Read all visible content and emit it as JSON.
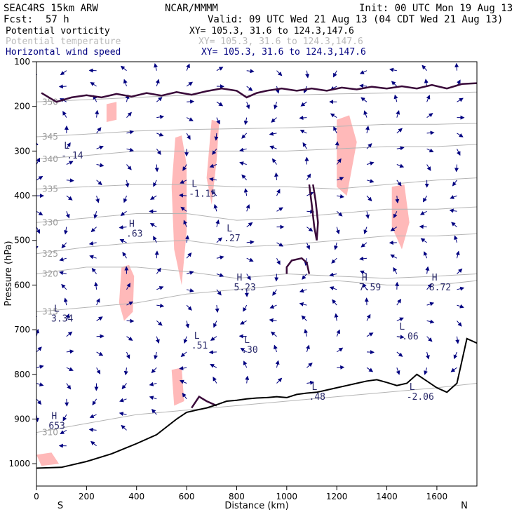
{
  "header": {
    "model": "SEAC4RS 15km ARW",
    "org": "NCAR/MMMM",
    "init": "Init: 00 UTC Mon 19 Aug 13",
    "fcst_label": "Fcst:",
    "fcst_value": "57 h",
    "valid": "Valid: 09 UTC Wed 21 Aug 13 (04 CDT Wed 21 Aug 13)",
    "fields": [
      {
        "name": "Potential vorticity",
        "xy": "XY= 105.3, 31.6 to 124.3,147.6",
        "color": "#000000"
      },
      {
        "name": "Potential temperature",
        "xy": "XY= 105.3, 31.6 to 124.3,147.6",
        "color": "#bbbbbb"
      },
      {
        "name": "Horizontal wind speed",
        "xy": "XY= 105.3, 31.6 to 124.3,147.6",
        "color": "#000080"
      }
    ]
  },
  "chart_data": {
    "type": "cross-section",
    "xlabel": "Distance (km)",
    "ylabel": "Pressure (hPa)",
    "x_ticks": [
      "0",
      "200",
      "400",
      "600",
      "800",
      "1000",
      "1200",
      "1400",
      "1600"
    ],
    "x_tick_values": [
      0,
      200,
      400,
      600,
      800,
      1000,
      1200,
      1400,
      1600
    ],
    "xlim": [
      0,
      1760
    ],
    "y_ticks": [
      "100",
      "200",
      "300",
      "400",
      "500",
      "600",
      "700",
      "800",
      "900",
      "1000"
    ],
    "y_tick_values": [
      100,
      200,
      300,
      400,
      500,
      600,
      700,
      800,
      900,
      1000
    ],
    "ylim": [
      1050,
      100
    ],
    "endpoint_labels": {
      "left": "S",
      "right": "N"
    },
    "colors": {
      "pv_contour": "#3a0a3a",
      "theta": "#b4b4b4",
      "wind": "#000080",
      "positive_fill": "#ffb9b9",
      "terrain": "#000000"
    },
    "terrain": {
      "x": [
        0,
        100,
        200,
        300,
        400,
        480,
        560,
        600,
        640,
        680,
        720,
        760,
        800,
        840,
        880,
        920,
        960,
        1000,
        1040,
        1080,
        1120,
        1160,
        1200,
        1240,
        1280,
        1320,
        1360,
        1400,
        1440,
        1480,
        1520,
        1560,
        1600,
        1640,
        1680,
        1720,
        1760
      ],
      "p": [
        1010,
        1008,
        995,
        978,
        955,
        935,
        900,
        885,
        880,
        875,
        868,
        860,
        858,
        855,
        853,
        852,
        850,
        852,
        845,
        842,
        840,
        835,
        830,
        825,
        820,
        815,
        812,
        818,
        825,
        820,
        800,
        815,
        830,
        840,
        820,
        720,
        730
      ]
    },
    "theta_contours": [
      {
        "label": "310",
        "points": [
          [
            0,
            930
          ],
          [
            200,
            910
          ],
          [
            400,
            890
          ],
          [
            600,
            880
          ],
          [
            800,
            870
          ],
          [
            1000,
            860
          ],
          [
            1200,
            850
          ],
          [
            1400,
            840
          ],
          [
            1600,
            830
          ],
          [
            1760,
            820
          ]
        ]
      },
      {
        "label": "315",
        "points": [
          [
            0,
            660
          ],
          [
            200,
            650
          ],
          [
            400,
            640
          ],
          [
            600,
            620
          ],
          [
            800,
            610
          ],
          [
            1000,
            600
          ],
          [
            1200,
            590
          ],
          [
            1400,
            600
          ],
          [
            1600,
            600
          ],
          [
            1760,
            590
          ]
        ]
      },
      {
        "label": "320",
        "points": [
          [
            0,
            575
          ],
          [
            200,
            560
          ],
          [
            400,
            560
          ],
          [
            600,
            570
          ],
          [
            800,
            585
          ],
          [
            1000,
            575
          ],
          [
            1200,
            580
          ],
          [
            1400,
            585
          ],
          [
            1600,
            580
          ],
          [
            1760,
            575
          ]
        ]
      },
      {
        "label": "325",
        "points": [
          [
            0,
            530
          ],
          [
            200,
            515
          ],
          [
            400,
            505
          ],
          [
            600,
            500
          ],
          [
            800,
            515
          ],
          [
            1000,
            510
          ],
          [
            1200,
            500
          ],
          [
            1400,
            490
          ],
          [
            1600,
            490
          ],
          [
            1760,
            485
          ]
        ]
      },
      {
        "label": "330",
        "points": [
          [
            0,
            460
          ],
          [
            200,
            450
          ],
          [
            400,
            440
          ],
          [
            600,
            440
          ],
          [
            800,
            455
          ],
          [
            1000,
            450
          ],
          [
            1200,
            440
          ],
          [
            1400,
            430
          ],
          [
            1600,
            430
          ],
          [
            1760,
            425
          ]
        ]
      },
      {
        "label": "335",
        "points": [
          [
            0,
            385
          ],
          [
            200,
            380
          ],
          [
            400,
            375
          ],
          [
            600,
            375
          ],
          [
            800,
            380
          ],
          [
            1000,
            380
          ],
          [
            1200,
            385
          ],
          [
            1400,
            375
          ],
          [
            1600,
            365
          ],
          [
            1760,
            360
          ]
        ]
      },
      {
        "label": "340",
        "points": [
          [
            0,
            318
          ],
          [
            200,
            310
          ],
          [
            400,
            300
          ],
          [
            600,
            300
          ],
          [
            800,
            300
          ],
          [
            1000,
            300
          ],
          [
            1200,
            295
          ],
          [
            1400,
            290
          ],
          [
            1600,
            290
          ],
          [
            1760,
            285
          ]
        ]
      },
      {
        "label": "345",
        "points": [
          [
            0,
            268
          ],
          [
            200,
            262
          ],
          [
            400,
            255
          ],
          [
            600,
            252
          ],
          [
            800,
            250
          ],
          [
            1000,
            248
          ],
          [
            1200,
            245
          ],
          [
            1400,
            240
          ],
          [
            1600,
            240
          ],
          [
            1760,
            238
          ]
        ]
      },
      {
        "label": "350",
        "points": [
          [
            0,
            190
          ],
          [
            200,
            185
          ],
          [
            400,
            180
          ],
          [
            600,
            175
          ],
          [
            800,
            175
          ],
          [
            1000,
            175
          ],
          [
            1200,
            172
          ],
          [
            1400,
            170
          ],
          [
            1600,
            170
          ],
          [
            1760,
            168
          ]
        ]
      }
    ],
    "pv_contours": [
      {
        "closed": false,
        "points": [
          [
            20,
            170
          ],
          [
            80,
            190
          ],
          [
            140,
            180
          ],
          [
            200,
            175
          ],
          [
            260,
            180
          ],
          [
            320,
            172
          ],
          [
            380,
            178
          ],
          [
            440,
            170
          ],
          [
            500,
            176
          ],
          [
            560,
            168
          ],
          [
            620,
            174
          ],
          [
            680,
            166
          ],
          [
            740,
            160
          ],
          [
            800,
            165
          ],
          [
            840,
            180
          ],
          [
            880,
            170
          ],
          [
            920,
            165
          ],
          [
            980,
            160
          ],
          [
            1040,
            165
          ],
          [
            1100,
            160
          ],
          [
            1160,
            165
          ],
          [
            1220,
            158
          ],
          [
            1280,
            162
          ],
          [
            1340,
            156
          ],
          [
            1400,
            160
          ],
          [
            1460,
            155
          ],
          [
            1520,
            160
          ],
          [
            1580,
            152
          ],
          [
            1640,
            160
          ],
          [
            1700,
            150
          ],
          [
            1760,
            148
          ]
        ]
      },
      {
        "closed": false,
        "points": [
          [
            1090,
            375
          ],
          [
            1100,
            420
          ],
          [
            1110,
            470
          ],
          [
            1120,
            500
          ],
          [
            1125,
            460
          ],
          [
            1115,
            410
          ],
          [
            1105,
            375
          ]
        ]
      },
      {
        "closed": false,
        "points": [
          [
            1000,
            575
          ],
          [
            1000,
            560
          ],
          [
            1020,
            545
          ],
          [
            1060,
            540
          ],
          [
            1080,
            550
          ],
          [
            1090,
            575
          ]
        ]
      },
      {
        "closed": false,
        "points": [
          [
            620,
            875
          ],
          [
            650,
            850
          ],
          [
            680,
            860
          ],
          [
            720,
            870
          ]
        ]
      }
    ],
    "positive_pv_regions": [
      {
        "points": [
          [
            340,
            560
          ],
          [
            370,
            555
          ],
          [
            390,
            580
          ],
          [
            385,
            660
          ],
          [
            350,
            680
          ],
          [
            330,
            640
          ]
        ]
      },
      {
        "points": [
          [
            555,
            270
          ],
          [
            580,
            265
          ],
          [
            600,
            330
          ],
          [
            600,
            480
          ],
          [
            580,
            600
          ],
          [
            550,
            520
          ],
          [
            540,
            380
          ]
        ]
      },
      {
        "points": [
          [
            700,
            230
          ],
          [
            730,
            235
          ],
          [
            720,
            320
          ],
          [
            700,
            420
          ],
          [
            680,
            360
          ]
        ]
      },
      {
        "points": [
          [
            1200,
            230
          ],
          [
            1250,
            220
          ],
          [
            1280,
            280
          ],
          [
            1240,
            400
          ],
          [
            1200,
            380
          ]
        ]
      },
      {
        "points": [
          [
            1420,
            380
          ],
          [
            1470,
            375
          ],
          [
            1490,
            460
          ],
          [
            1460,
            520
          ],
          [
            1420,
            470
          ]
        ]
      },
      {
        "points": [
          [
            540,
            790
          ],
          [
            580,
            785
          ],
          [
            590,
            860
          ],
          [
            550,
            870
          ]
        ]
      },
      {
        "points": [
          [
            280,
            195
          ],
          [
            320,
            190
          ],
          [
            320,
            230
          ],
          [
            280,
            235
          ]
        ]
      },
      {
        "points": [
          [
            0,
            980
          ],
          [
            60,
            975
          ],
          [
            90,
            1000
          ],
          [
            20,
            1005
          ]
        ]
      }
    ],
    "wind_columns_km": [
      0,
      120,
      240,
      360,
      480,
      600,
      720,
      840,
      960,
      1080,
      1200,
      1320,
      1440,
      1560,
      1680
    ],
    "annotations": [
      {
        "kind": "H",
        "x": 60,
        "p": 900,
        "value": "653"
      },
      {
        "kind": "L",
        "x": 110,
        "p": 295,
        "value": "-.14"
      },
      {
        "kind": "H",
        "x": 370,
        "p": 470,
        "value": ".63"
      },
      {
        "kind": "L",
        "x": 620,
        "p": 380,
        "value": "-1.15"
      },
      {
        "kind": "L",
        "x": 760,
        "p": 480,
        "value": ".27"
      },
      {
        "kind": "H",
        "x": 800,
        "p": 590,
        "value": "5.23"
      },
      {
        "kind": "H",
        "x": 1300,
        "p": 590,
        "value": "7.59"
      },
      {
        "kind": "H",
        "x": 1580,
        "p": 590,
        "value": "8.72"
      },
      {
        "kind": "L",
        "x": 70,
        "p": 660,
        "value": "3.34"
      },
      {
        "kind": "L",
        "x": 1450,
        "p": 700,
        "value": "-.06"
      },
      {
        "kind": "L",
        "x": 630,
        "p": 720,
        "value": ".51"
      },
      {
        "kind": "L",
        "x": 830,
        "p": 730,
        "value": ".30"
      },
      {
        "kind": "L",
        "x": 1100,
        "p": 835,
        "value": ".48"
      },
      {
        "kind": "L",
        "x": 1490,
        "p": 835,
        "value": "-2.06"
      }
    ]
  }
}
